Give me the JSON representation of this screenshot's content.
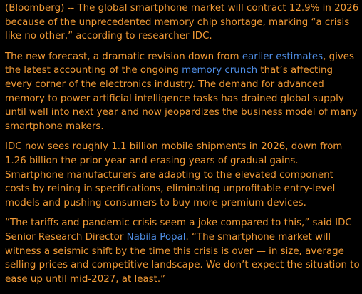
{
  "colors": {
    "background": "#000000",
    "text": "#f29a35",
    "link": "#4f8fe8"
  },
  "article": {
    "p1": {
      "text": "(Bloomberg) -- The global smartphone market will contract 12.9% in 2026 because of the unprecedented memory chip shortage, marking “a crisis like no other,” according to researcher IDC."
    },
    "p2": {
      "t1": "The new forecast, a dramatic revision down from ",
      "link1": "earlier estimates",
      "t2": ", gives the latest accounting of the ongoing ",
      "link2": "memory crunch",
      "t3": " that’s affecting every corner of the electronics industry. The demand for advanced memory to power artificial intelligence tasks has drained global supply until well into next year and now jeopardizes the business model of many smartphone makers."
    },
    "p3": {
      "text": "IDC now sees roughly 1.1 billion mobile shipments in 2026, down from 1.26 billion the prior year and erasing years of gradual gains. Smartphone manufacturers are adapting to the elevated component costs by reining in specifications, eliminating unprofitable entry-level models and pushing consumers to buy more premium devices."
    },
    "p4": {
      "t1": "“The tariffs and pandemic crisis seem a joke compared to this,” said IDC Senior Research Director ",
      "link1": "Nabila Popal",
      "t2": ". “The smartphone market will witness a seismic shift by the time this crisis is over — in size, average selling prices and competitive landscape. We don’t expect the situation to ease up until mid-2027, at least.”"
    }
  }
}
